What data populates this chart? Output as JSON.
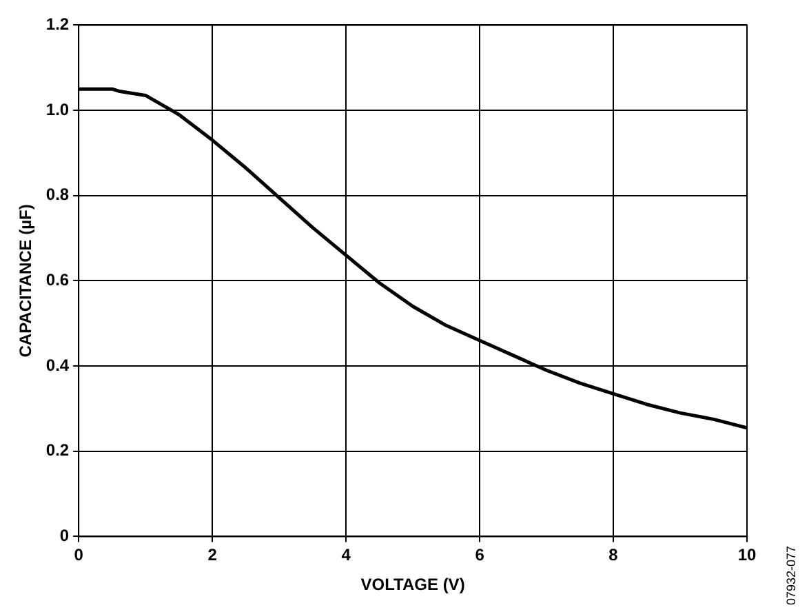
{
  "chart_data": {
    "type": "line",
    "xlabel": "VOLTAGE (V)",
    "ylabel": "CAPACITANCE (µF)",
    "annotations": [
      "07932-077"
    ],
    "x": [
      0,
      0.5,
      0.6,
      1,
      1.5,
      2,
      2.5,
      3,
      3.5,
      4,
      4.5,
      5,
      5.5,
      6,
      6.5,
      7,
      7.5,
      8,
      8.5,
      9,
      9.5,
      10
    ],
    "series": [
      {
        "color": "#000000",
        "values": [
          1.05,
          1.05,
          1.045,
          1.035,
          0.99,
          0.93,
          0.865,
          0.795,
          0.725,
          0.66,
          0.595,
          0.54,
          0.495,
          0.46,
          0.425,
          0.39,
          0.36,
          0.335,
          0.31,
          0.29,
          0.275,
          0.255
        ]
      }
    ],
    "xlim": [
      0,
      10
    ],
    "xticks": [
      0,
      2,
      4,
      6,
      8,
      10
    ],
    "ylim": [
      0,
      1.2
    ],
    "yticks": [
      0,
      0.2,
      0.4,
      0.6,
      0.8,
      {
        "value": 1,
        "label": "1.0"
      },
      1.2
    ],
    "grid": true,
    "legend": false,
    "marker": "none",
    "line_style": "solid"
  }
}
